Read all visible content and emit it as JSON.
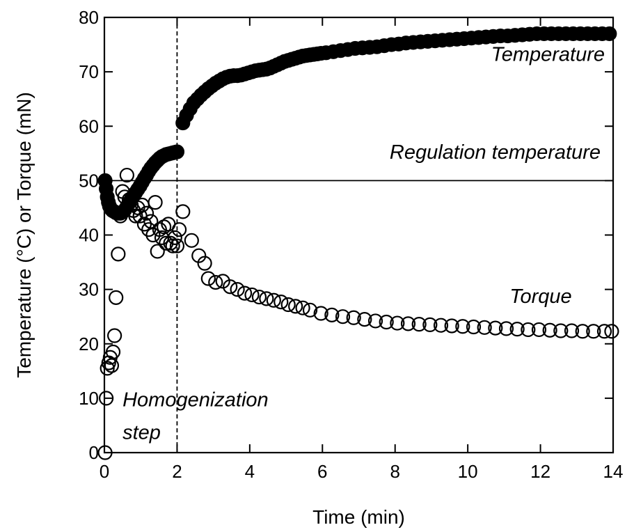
{
  "chart_data": {
    "type": "scatter",
    "title": "",
    "xlabel": "Time (min)",
    "ylabel": "Temperature (°C) or Torque (mN)",
    "xlim": [
      0,
      14
    ],
    "ylim": [
      0,
      80
    ],
    "xticks": [
      0,
      2,
      4,
      6,
      8,
      10,
      12,
      14
    ],
    "yticks": [
      0,
      10,
      20,
      30,
      40,
      50,
      60,
      70,
      80
    ],
    "grid": false,
    "legend": "none",
    "reference_lines": {
      "horizontal_y": 50,
      "vertical_x": 2
    },
    "annotations": [
      {
        "text": "Temperature",
        "x": 14,
        "y": 72
      },
      {
        "text": "Regulation temperature",
        "x": 14,
        "y": 54
      },
      {
        "text": "Torque",
        "x": 13.4,
        "y": 27.5
      },
      {
        "text": "Homogenization",
        "x": 0.5,
        "y": 8.5
      },
      {
        "text": "step",
        "x": 0.5,
        "y": 2.5
      }
    ],
    "series": [
      {
        "marker": "filled-circle",
        "color": "#000000",
        "points": [
          [
            0.02,
            50.0
          ],
          [
            0.05,
            48.5
          ],
          [
            0.08,
            47.0
          ],
          [
            0.11,
            46.0
          ],
          [
            0.14,
            45.3
          ],
          [
            0.18,
            44.8
          ],
          [
            0.22,
            44.5
          ],
          [
            0.27,
            44.3
          ],
          [
            0.32,
            44.1
          ],
          [
            0.38,
            44.0
          ],
          [
            0.44,
            44.0
          ],
          [
            0.5,
            44.2
          ],
          [
            0.56,
            44.6
          ],
          [
            0.62,
            45.2
          ],
          [
            0.68,
            45.9
          ],
          [
            0.74,
            46.6
          ],
          [
            0.8,
            47.2
          ],
          [
            0.86,
            47.8
          ],
          [
            0.92,
            48.4
          ],
          [
            0.98,
            49.0
          ],
          [
            1.04,
            49.7
          ],
          [
            1.1,
            50.4
          ],
          [
            1.16,
            51.0
          ],
          [
            1.22,
            51.7
          ],
          [
            1.28,
            52.3
          ],
          [
            1.34,
            52.8
          ],
          [
            1.4,
            53.3
          ],
          [
            1.46,
            53.7
          ],
          [
            1.52,
            54.1
          ],
          [
            1.58,
            54.4
          ],
          [
            1.64,
            54.6
          ],
          [
            1.7,
            54.8
          ],
          [
            1.76,
            54.9
          ],
          [
            1.82,
            55.0
          ],
          [
            1.88,
            55.1
          ],
          [
            1.94,
            55.2
          ],
          [
            2.0,
            55.3
          ],
          [
            2.16,
            60.6
          ],
          [
            2.26,
            62.0
          ],
          [
            2.36,
            63.2
          ],
          [
            2.46,
            64.3
          ],
          [
            2.56,
            65.0
          ],
          [
            2.66,
            65.7
          ],
          [
            2.76,
            66.3
          ],
          [
            2.86,
            66.9
          ],
          [
            2.96,
            67.4
          ],
          [
            3.06,
            67.9
          ],
          [
            3.16,
            68.3
          ],
          [
            3.26,
            68.7
          ],
          [
            3.36,
            69.0
          ],
          [
            3.46,
            69.2
          ],
          [
            3.56,
            69.3
          ],
          [
            3.66,
            69.3
          ],
          [
            3.76,
            69.4
          ],
          [
            3.86,
            69.6
          ],
          [
            3.96,
            69.8
          ],
          [
            4.06,
            70.0
          ],
          [
            4.16,
            70.2
          ],
          [
            4.26,
            70.3
          ],
          [
            4.36,
            70.4
          ],
          [
            4.46,
            70.5
          ],
          [
            4.56,
            70.7
          ],
          [
            4.66,
            71.0
          ],
          [
            4.76,
            71.3
          ],
          [
            4.86,
            71.6
          ],
          [
            4.96,
            71.9
          ],
          [
            5.06,
            72.1
          ],
          [
            5.16,
            72.3
          ],
          [
            5.26,
            72.5
          ],
          [
            5.36,
            72.7
          ],
          [
            5.46,
            72.9
          ],
          [
            5.56,
            73.0
          ],
          [
            5.66,
            73.1
          ],
          [
            5.76,
            73.2
          ],
          [
            5.86,
            73.3
          ],
          [
            5.96,
            73.4
          ],
          [
            6.1,
            73.5
          ],
          [
            6.3,
            73.7
          ],
          [
            6.5,
            73.9
          ],
          [
            6.7,
            74.1
          ],
          [
            6.9,
            74.3
          ],
          [
            7.1,
            74.4
          ],
          [
            7.3,
            74.5
          ],
          [
            7.5,
            74.6
          ],
          [
            7.7,
            74.8
          ],
          [
            7.9,
            75.0
          ],
          [
            8.1,
            75.1
          ],
          [
            8.3,
            75.3
          ],
          [
            8.5,
            75.4
          ],
          [
            8.7,
            75.5
          ],
          [
            8.9,
            75.6
          ],
          [
            9.1,
            75.7
          ],
          [
            9.3,
            75.8
          ],
          [
            9.5,
            75.9
          ],
          [
            9.7,
            76.0
          ],
          [
            9.9,
            76.1
          ],
          [
            10.1,
            76.2
          ],
          [
            10.3,
            76.3
          ],
          [
            10.5,
            76.4
          ],
          [
            10.7,
            76.5
          ],
          [
            10.9,
            76.6
          ],
          [
            11.1,
            76.6
          ],
          [
            11.3,
            76.7
          ],
          [
            11.5,
            76.8
          ],
          [
            11.7,
            76.9
          ],
          [
            11.9,
            77.0
          ],
          [
            12.1,
            77.0
          ],
          [
            12.3,
            77.0
          ],
          [
            12.5,
            77.0
          ],
          [
            12.7,
            77.0
          ],
          [
            12.9,
            77.0
          ],
          [
            13.1,
            77.0
          ],
          [
            13.3,
            77.0
          ],
          [
            13.5,
            77.0
          ],
          [
            13.7,
            77.0
          ],
          [
            13.9,
            77.0
          ]
        ]
      },
      {
        "marker": "open-circle",
        "color": "#000000",
        "points": [
          [
            0.02,
            0.0
          ],
          [
            0.05,
            10.0
          ],
          [
            0.08,
            15.5
          ],
          [
            0.12,
            16.5
          ],
          [
            0.16,
            17.5
          ],
          [
            0.2,
            16.0
          ],
          [
            0.24,
            18.5
          ],
          [
            0.28,
            21.5
          ],
          [
            0.32,
            28.5
          ],
          [
            0.38,
            36.5
          ],
          [
            0.44,
            43.5
          ],
          [
            0.5,
            48.0
          ],
          [
            0.56,
            47.0
          ],
          [
            0.62,
            51.0
          ],
          [
            0.68,
            46.5
          ],
          [
            0.74,
            45.5
          ],
          [
            0.8,
            44.5
          ],
          [
            0.86,
            43.5
          ],
          [
            0.92,
            45.0
          ],
          [
            0.98,
            43.5
          ],
          [
            1.04,
            45.5
          ],
          [
            1.1,
            42.0
          ],
          [
            1.16,
            44.0
          ],
          [
            1.22,
            41.0
          ],
          [
            1.28,
            42.5
          ],
          [
            1.34,
            40.0
          ],
          [
            1.4,
            46.0
          ],
          [
            1.46,
            37.0
          ],
          [
            1.52,
            41.0
          ],
          [
            1.58,
            39.5
          ],
          [
            1.64,
            41.5
          ],
          [
            1.7,
            38.5
          ],
          [
            1.76,
            42.0
          ],
          [
            1.82,
            38.5
          ],
          [
            1.88,
            38.0
          ],
          [
            1.94,
            39.5
          ],
          [
            2.0,
            38.0
          ],
          [
            2.06,
            41.0
          ],
          [
            2.16,
            44.3
          ],
          [
            2.4,
            39.0
          ],
          [
            2.6,
            36.2
          ],
          [
            2.76,
            34.8
          ],
          [
            2.86,
            32.0
          ],
          [
            3.06,
            31.3
          ],
          [
            3.26,
            31.5
          ],
          [
            3.46,
            30.5
          ],
          [
            3.66,
            30.0
          ],
          [
            3.86,
            29.3
          ],
          [
            4.06,
            29.0
          ],
          [
            4.26,
            28.6
          ],
          [
            4.46,
            28.3
          ],
          [
            4.66,
            28.0
          ],
          [
            4.86,
            27.7
          ],
          [
            5.06,
            27.2
          ],
          [
            5.26,
            26.9
          ],
          [
            5.46,
            26.6
          ],
          [
            5.66,
            26.2
          ],
          [
            5.96,
            25.6
          ],
          [
            6.26,
            25.3
          ],
          [
            6.56,
            25.0
          ],
          [
            6.86,
            24.8
          ],
          [
            7.16,
            24.5
          ],
          [
            7.46,
            24.2
          ],
          [
            7.76,
            24.0
          ],
          [
            8.06,
            23.8
          ],
          [
            8.36,
            23.7
          ],
          [
            8.66,
            23.6
          ],
          [
            8.96,
            23.5
          ],
          [
            9.26,
            23.4
          ],
          [
            9.56,
            23.3
          ],
          [
            9.86,
            23.2
          ],
          [
            10.16,
            23.1
          ],
          [
            10.46,
            23.0
          ],
          [
            10.76,
            22.9
          ],
          [
            11.06,
            22.8
          ],
          [
            11.36,
            22.7
          ],
          [
            11.66,
            22.6
          ],
          [
            11.96,
            22.6
          ],
          [
            12.26,
            22.5
          ],
          [
            12.56,
            22.4
          ],
          [
            12.86,
            22.4
          ],
          [
            13.16,
            22.3
          ],
          [
            13.46,
            22.3
          ],
          [
            13.76,
            22.3
          ],
          [
            13.96,
            22.3
          ]
        ]
      }
    ]
  }
}
